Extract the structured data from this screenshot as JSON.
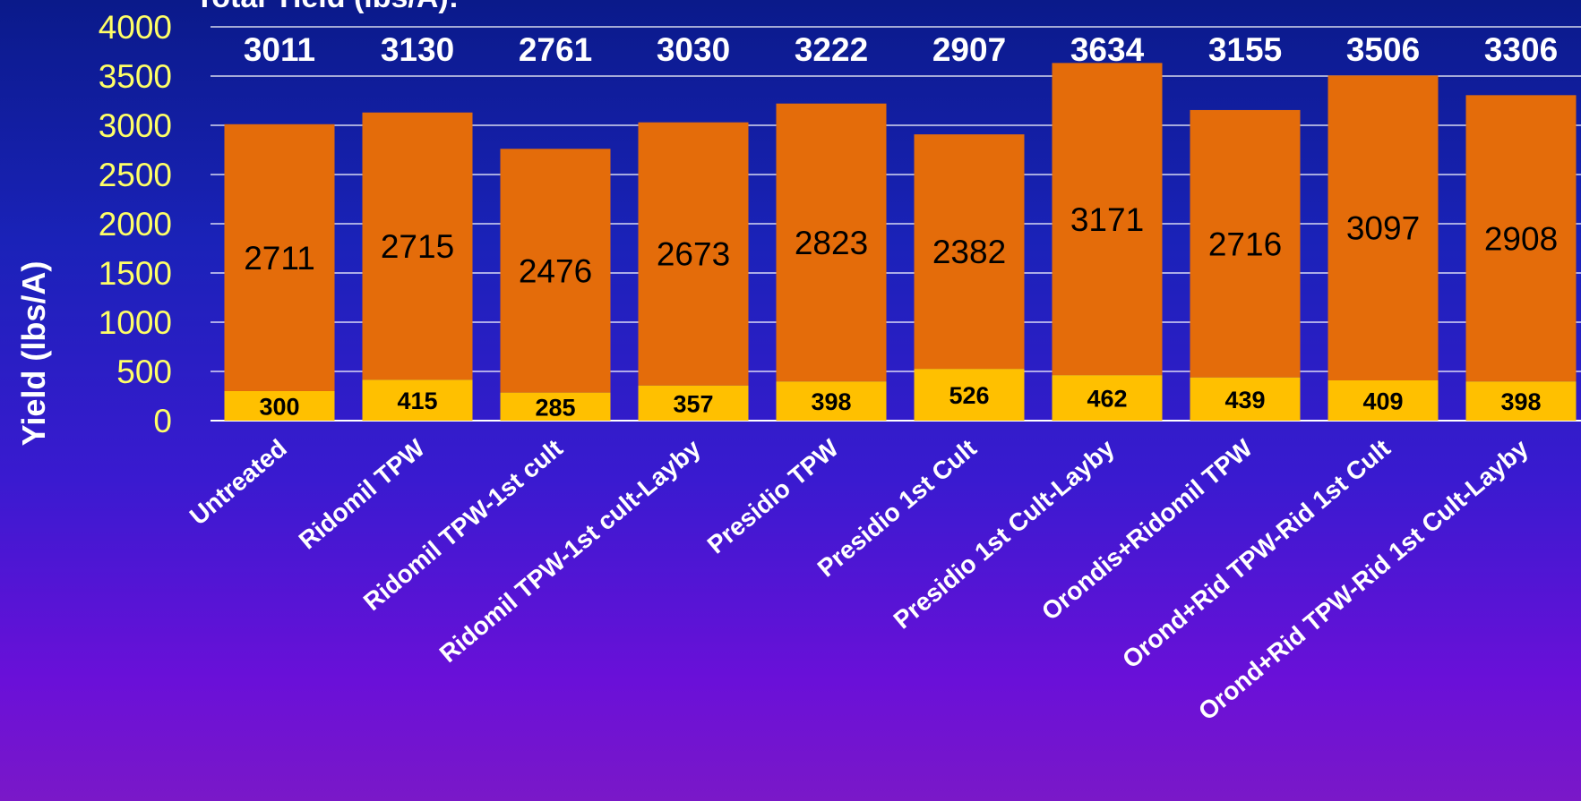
{
  "chart_data": {
    "type": "bar",
    "stacked": true,
    "title": "Total Yield (lbs/A):",
    "ylabel": "Yield (lbs/A)",
    "xlabel": "",
    "ylim": [
      0,
      4000
    ],
    "yticks": [
      0,
      500,
      1000,
      1500,
      2000,
      2500,
      3000,
      3500,
      4000
    ],
    "grid": true,
    "categories": [
      "Untreated",
      "Ridomil TPW",
      "Ridomil TPW-1st cult",
      "Ridomil TPW-1st cult-Layby",
      "Presidio TPW",
      "Presidio 1st Cult",
      "Presidio 1st Cult-Layby",
      "Orondis+Ridomil TPW",
      "Orond+Rid TPW-Rid 1st Cult",
      "Orond+Rid TPW-Rid 1st Cult-Layby"
    ],
    "series": [
      {
        "values": [
          300,
          415,
          285,
          357,
          398,
          526,
          462,
          439,
          409,
          398
        ]
      },
      {
        "values": [
          2711,
          2715,
          2476,
          2673,
          2823,
          2382,
          3171,
          2716,
          3097,
          2908
        ]
      }
    ],
    "totals": [
      3011,
      3130,
      2761,
      3030,
      3222,
      2907,
      3634,
      3155,
      3506,
      3306
    ],
    "colors": {
      "lower": "#ffc000",
      "upper": "#e46c0a",
      "axis_text": "#ffff66",
      "white": "#ffffff",
      "black": "#000000"
    }
  }
}
